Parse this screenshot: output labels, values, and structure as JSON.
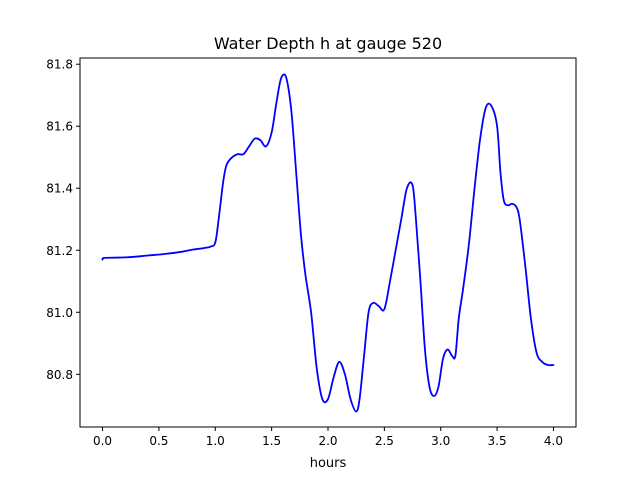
{
  "chart_data": {
    "type": "line",
    "title": "Water Depth h at gauge 520",
    "xlabel": "hours",
    "ylabel": "",
    "xlim": [
      -0.2,
      4.2
    ],
    "ylim": [
      80.63,
      81.82
    ],
    "xticks": [
      0.0,
      0.5,
      1.0,
      1.5,
      2.0,
      2.5,
      3.0,
      3.5,
      4.0
    ],
    "xtick_labels": [
      "0.0",
      "0.5",
      "1.0",
      "1.5",
      "2.0",
      "2.5",
      "3.0",
      "3.5",
      "4.0"
    ],
    "yticks": [
      80.8,
      81.0,
      81.2,
      81.4,
      81.6,
      81.8
    ],
    "ytick_labels": [
      "80.8",
      "81.0",
      "81.2",
      "81.4",
      "81.6",
      "81.8"
    ],
    "grid": false,
    "series_color": "#0000ff",
    "series": [
      {
        "x": [
          0.0,
          0.01,
          0.1,
          0.25,
          0.4,
          0.55,
          0.7,
          0.8,
          0.9,
          0.96,
          1.0,
          1.03,
          1.07,
          1.1,
          1.15,
          1.2,
          1.25,
          1.3,
          1.35,
          1.4,
          1.45,
          1.5,
          1.54,
          1.58,
          1.62,
          1.65,
          1.68,
          1.72,
          1.76,
          1.8,
          1.85,
          1.9,
          1.95,
          2.0,
          2.05,
          2.1,
          2.15,
          2.2,
          2.25,
          2.28,
          2.32,
          2.36,
          2.4,
          2.45,
          2.5,
          2.55,
          2.6,
          2.65,
          2.7,
          2.75,
          2.78,
          2.82,
          2.86,
          2.9,
          2.94,
          2.98,
          3.02,
          3.06,
          3.1,
          3.13,
          3.16,
          3.2,
          3.25,
          3.3,
          3.35,
          3.4,
          3.45,
          3.5,
          3.53,
          3.56,
          3.6,
          3.63,
          3.67,
          3.7,
          3.75,
          3.8,
          3.85,
          3.9,
          3.95,
          4.0
        ],
        "y": [
          81.17,
          81.175,
          81.176,
          81.178,
          81.183,
          81.188,
          81.195,
          81.202,
          81.207,
          81.212,
          81.225,
          81.3,
          81.42,
          81.475,
          81.5,
          81.51,
          81.51,
          81.535,
          81.56,
          81.555,
          81.535,
          81.58,
          81.67,
          81.75,
          81.765,
          81.72,
          81.63,
          81.44,
          81.25,
          81.12,
          81.0,
          80.82,
          80.72,
          80.72,
          80.79,
          80.84,
          80.8,
          80.72,
          80.68,
          80.72,
          80.86,
          81.0,
          81.03,
          81.02,
          81.01,
          81.1,
          81.2,
          81.3,
          81.4,
          81.41,
          81.3,
          81.1,
          80.88,
          80.76,
          80.73,
          80.76,
          80.85,
          80.88,
          80.86,
          80.86,
          80.98,
          81.08,
          81.22,
          81.4,
          81.56,
          81.66,
          81.665,
          81.6,
          81.45,
          81.36,
          81.345,
          81.35,
          81.34,
          81.3,
          81.15,
          80.98,
          80.87,
          80.84,
          80.83,
          80.83
        ]
      }
    ]
  }
}
